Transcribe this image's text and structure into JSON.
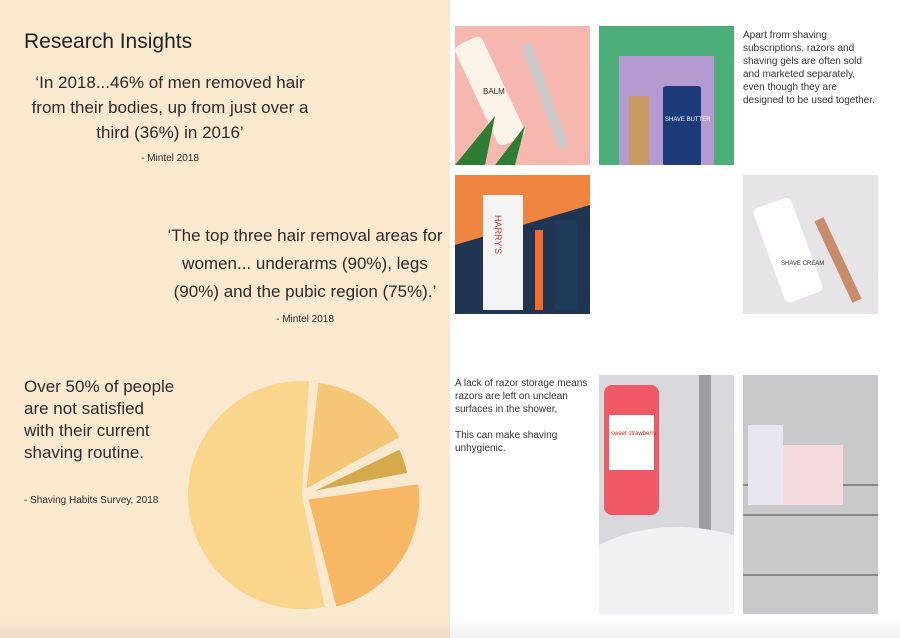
{
  "left": {
    "title": "Research Insights",
    "quote1": "‘In 2018...46% of men removed hair from their bodies, up from just over a third (36%) in 2016’",
    "source1": "- Mintel 2018",
    "quote2": "‘The top three hair removal areas for women... underarms (90%), legs (90%) and the pubic region (75%).’",
    "source2": "- Mintel 2018",
    "stat": "Over 50% of people are not satisfied with their current shaving routine.",
    "source3": "- Shaving Habits Survey, 2018"
  },
  "chart_data": {
    "type": "pie",
    "values": [
      55,
      16,
      5,
      24
    ],
    "colors": [
      "#f9d68c",
      "#f6c677",
      "#d4aa4a",
      "#f8b765"
    ],
    "exploded": true
  },
  "right": {
    "text1": "Apart from shaving subscriptions, razors and shaving gels are often sold and marketed separately, even though they are designed to be used together.",
    "text2a": "A lack of razor storage means razors are left on unclean surfaces in the shower,",
    "text2b": "This can make shaving unhygienic.",
    "images": [
      {
        "label": "BALM",
        "bg": "#f6b8ae"
      },
      {
        "label": "SHAVE BUTTER",
        "bg": "#b49ad0"
      },
      {
        "label": "HARRY'S",
        "bg": "#1f3552"
      },
      {
        "label": "SHAVE CREAM",
        "bg": "#e6e4e6"
      },
      {
        "label": "sweet strawberry",
        "bg": "#d9d9dd"
      },
      {
        "label": "",
        "bg": "#c9c9cc"
      }
    ]
  }
}
